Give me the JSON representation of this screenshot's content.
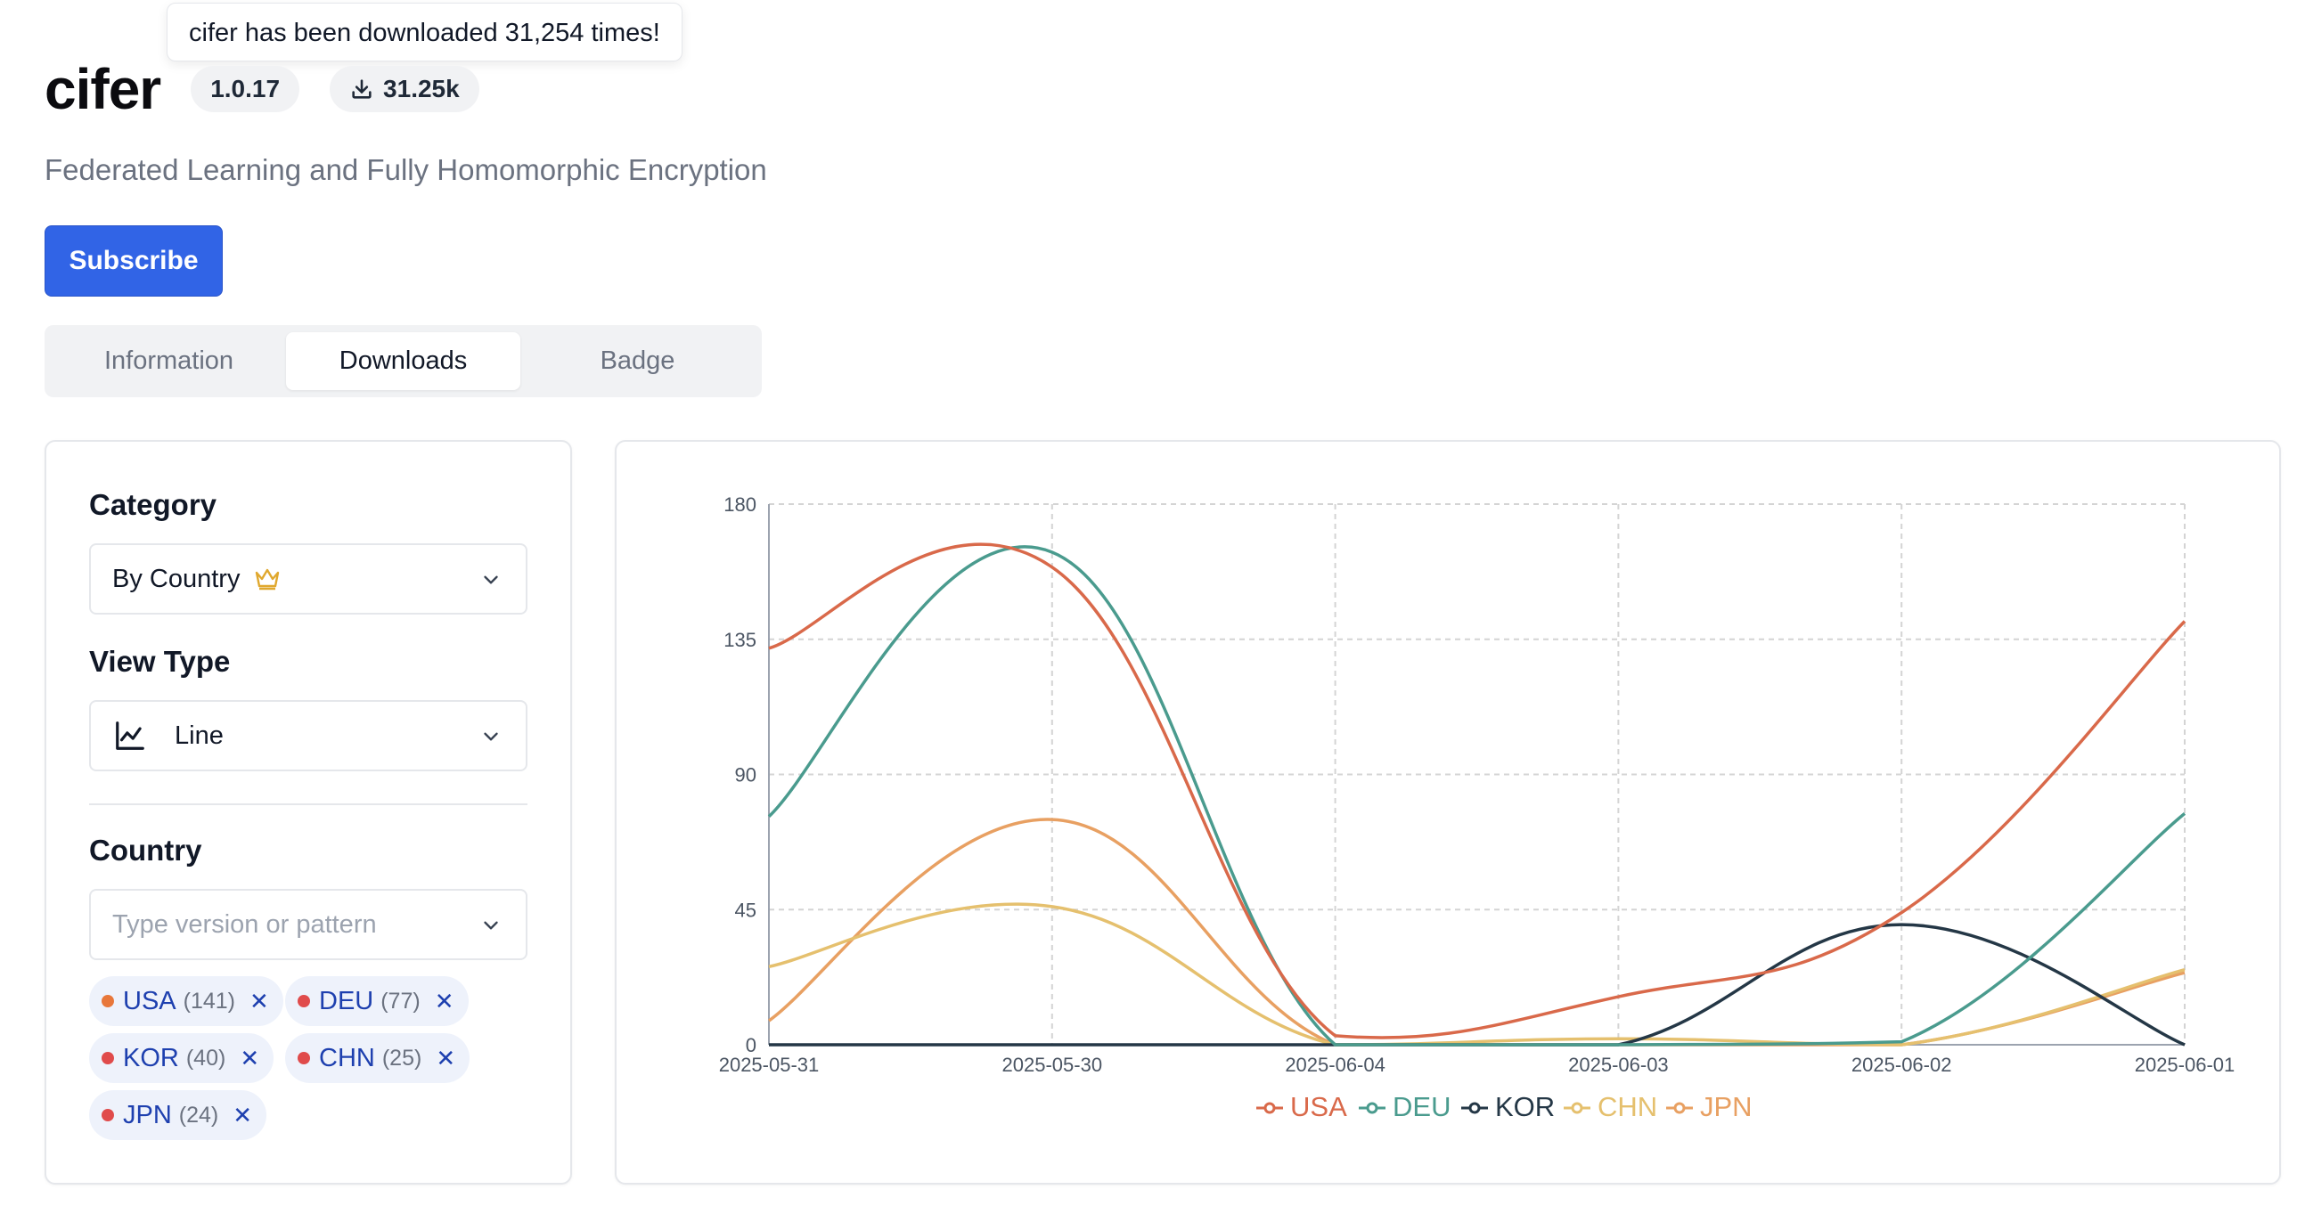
{
  "tooltip": {
    "text": "cifer has been downloaded 31,254 times!"
  },
  "package": {
    "name": "cifer",
    "version": "1.0.17",
    "downloads_short": "31.25k",
    "description": "Federated Learning and Fully Homomorphic Encryption"
  },
  "subscribe_label": "Subscribe",
  "tabs": [
    {
      "label": "Information",
      "active": false
    },
    {
      "label": "Downloads",
      "active": true
    },
    {
      "label": "Badge",
      "active": false
    }
  ],
  "filters": {
    "category_label": "Category",
    "category_value": "By Country",
    "view_type_label": "View Type",
    "view_type_value": "Line",
    "country_label": "Country",
    "country_placeholder": "Type version or pattern",
    "chips": [
      {
        "code": "USA",
        "count": "(141)",
        "dot_color": "#e8773a"
      },
      {
        "code": "DEU",
        "count": "(77)",
        "dot_color": "#e04b4b"
      },
      {
        "code": "KOR",
        "count": "(40)",
        "dot_color": "#e04b4b"
      },
      {
        "code": "CHN",
        "count": "(25)",
        "dot_color": "#e04b4b"
      },
      {
        "code": "JPN",
        "count": "(24)",
        "dot_color": "#e04b4b"
      }
    ]
  },
  "chart_data": {
    "type": "line",
    "x": [
      "2025-05-31",
      "2025-05-30",
      "2025-06-04",
      "2025-06-03",
      "2025-06-02",
      "2025-06-01"
    ],
    "ylim": [
      0,
      180
    ],
    "yticks": [
      0,
      45,
      90,
      135,
      180
    ],
    "grid": true,
    "legend_position": "bottom",
    "series": [
      {
        "name": "USA",
        "color": "#d9694a",
        "values": [
          132,
          159,
          3,
          16,
          44,
          141
        ]
      },
      {
        "name": "DEU",
        "color": "#4a9b8e",
        "values": [
          76,
          164,
          0,
          0,
          1,
          77
        ]
      },
      {
        "name": "KOR",
        "color": "#243746",
        "values": [
          0,
          0,
          0,
          0,
          40,
          0
        ]
      },
      {
        "name": "CHN",
        "color": "#e5c06e",
        "values": [
          26,
          46,
          0,
          2,
          0,
          25
        ]
      },
      {
        "name": "JPN",
        "color": "#e8a062",
        "values": [
          8,
          75,
          0,
          0,
          0,
          24
        ]
      }
    ]
  }
}
